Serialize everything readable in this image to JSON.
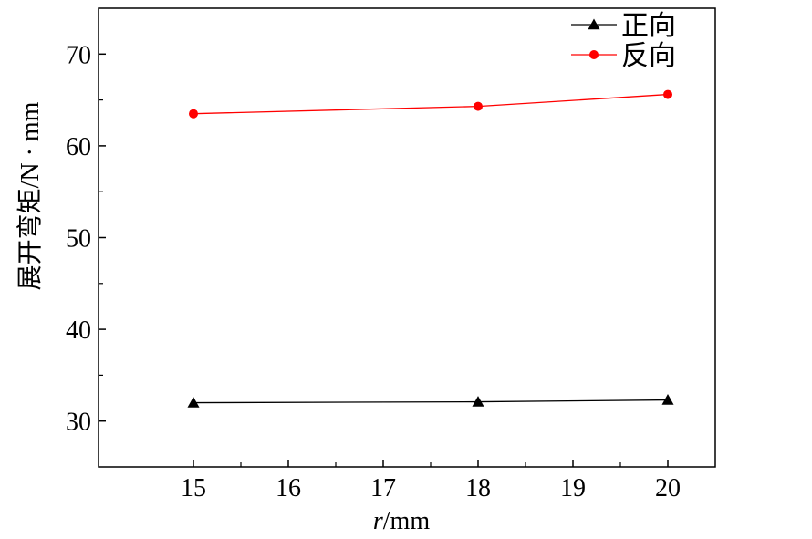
{
  "chart_data": {
    "type": "line",
    "x": [
      15,
      18,
      20
    ],
    "series": [
      {
        "name": "正向",
        "values": [
          32.0,
          32.1,
          32.3
        ],
        "color": "#000000",
        "marker": "triangle"
      },
      {
        "name": "反向",
        "values": [
          63.5,
          64.3,
          65.6
        ],
        "color": "#ff0000",
        "marker": "circle"
      }
    ],
    "xlim": [
      14,
      20.5
    ],
    "ylim": [
      25,
      75
    ],
    "xticks": [
      15,
      16,
      17,
      18,
      19,
      20
    ],
    "yticks": [
      30,
      40,
      50,
      60,
      70
    ],
    "xlabel_var": "r",
    "xlabel_unit": "/mm",
    "ylabel": "展开弯矩/N · mm",
    "legend_position": "top-right",
    "grid": false
  }
}
